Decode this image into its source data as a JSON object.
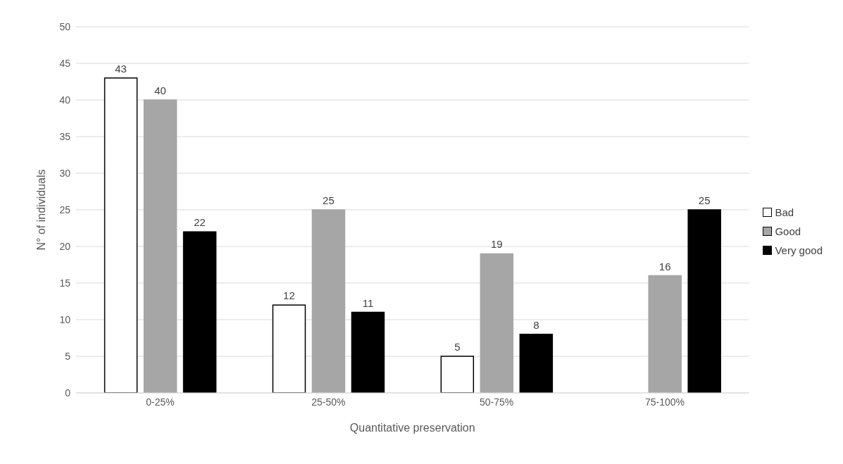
{
  "chart_data": {
    "type": "bar",
    "xlabel": "Quantitative preservation",
    "ylabel": "N° of individuals",
    "categories": [
      "0-25%",
      "25-50%",
      "50-75%",
      "75-100%"
    ],
    "series": [
      {
        "name": "Bad",
        "color": "#ffffff",
        "values": [
          43,
          12,
          5,
          null
        ]
      },
      {
        "name": "Good",
        "color": "#a6a6a6",
        "values": [
          40,
          25,
          19,
          16
        ]
      },
      {
        "name": "Very good",
        "color": "#000000",
        "values": [
          22,
          11,
          8,
          25
        ]
      }
    ],
    "ylim": [
      0,
      50
    ],
    "yticks": [
      0,
      5,
      10,
      15,
      20,
      25,
      30,
      35,
      40,
      45,
      50
    ],
    "grid": "y",
    "legend": "right",
    "data_labels": true
  }
}
